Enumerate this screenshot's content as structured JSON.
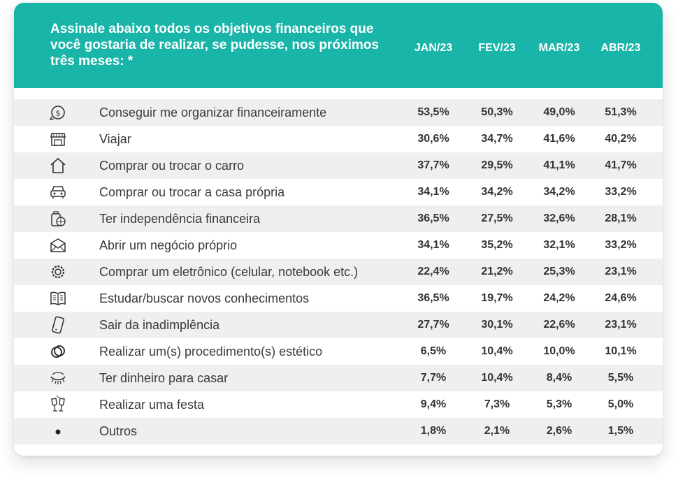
{
  "colors": {
    "header_bg": "#19b5a8",
    "alt_row": "#efefef",
    "text": "#333333"
  },
  "chart_data": {
    "type": "table",
    "title": "Assinale abaixo todos os objetivos financeiros que você gostaria de realizar, se pudesse, nos próximos três meses: *",
    "columns": [
      "JAN/23",
      "FEV/23",
      "MAR/23",
      "ABR/23"
    ],
    "rows": [
      {
        "icon": "money-cycle-icon",
        "label": "Conseguir me organizar financeiramente",
        "values": [
          "53,5%",
          "50,3%",
          "49,0%",
          "51,3%"
        ]
      },
      {
        "icon": "storefront-icon",
        "label": "Viajar",
        "values": [
          "30,6%",
          "34,7%",
          "41,6%",
          "40,2%"
        ]
      },
      {
        "icon": "house-icon",
        "label": "Comprar ou trocar o carro",
        "values": [
          "37,7%",
          "29,5%",
          "41,1%",
          "41,7%"
        ]
      },
      {
        "icon": "car-icon",
        "label": "Comprar ou trocar a casa própria",
        "values": [
          "34,1%",
          "34,2%",
          "34,2%",
          "33,2%"
        ]
      },
      {
        "icon": "luggage-globe-icon",
        "label": "Ter independência financeira",
        "values": [
          "36,5%",
          "27,5%",
          "32,6%",
          "28,1%"
        ]
      },
      {
        "icon": "envelope-icon",
        "label": "Abrir um negócio próprio",
        "values": [
          "34,1%",
          "35,2%",
          "32,1%",
          "33,2%"
        ]
      },
      {
        "icon": "gear-badge-icon",
        "label": "Comprar um eletrônico (celular, notebook etc.)",
        "values": [
          "22,4%",
          "21,2%",
          "25,3%",
          "23,1%"
        ]
      },
      {
        "icon": "open-book-icon",
        "label": "Estudar/buscar novos conhecimentos",
        "values": [
          "36,5%",
          "19,7%",
          "24,2%",
          "24,6%"
        ]
      },
      {
        "icon": "smartphone-icon",
        "label": "Sair da inadimplência",
        "values": [
          "27,7%",
          "30,1%",
          "22,6%",
          "23,1%"
        ]
      },
      {
        "icon": "rings-icon",
        "label": "Realizar um(s) procedimento(s) estético",
        "values": [
          "6,5%",
          "10,4%",
          "10,0%",
          "10,1%"
        ]
      },
      {
        "icon": "eye-lashes-icon",
        "label": "Ter dinheiro para casar",
        "values": [
          "7,7%",
          "10,4%",
          "8,4%",
          "5,5%"
        ]
      },
      {
        "icon": "toast-glasses-icon",
        "label": "Realizar uma festa",
        "values": [
          "9,4%",
          "7,3%",
          "5,3%",
          "5,0%"
        ]
      },
      {
        "icon": "dot-icon",
        "label": "Outros",
        "values": [
          "1,8%",
          "2,1%",
          "2,6%",
          "1,5%"
        ]
      }
    ]
  }
}
